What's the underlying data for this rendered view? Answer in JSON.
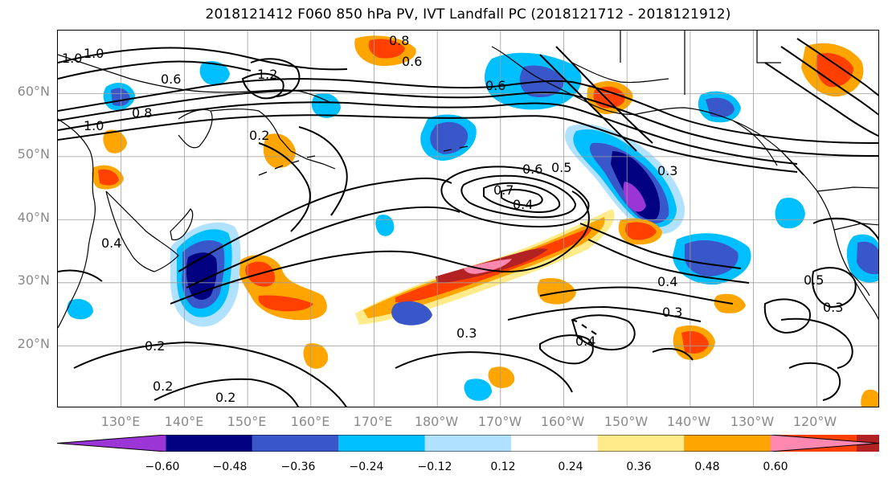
{
  "title": "2018121412 F060 850 hPa PV, IVT Landfall PC (2018121712 - 2018121912)",
  "lat_labels": [
    "60°N",
    "50°N",
    "40°N",
    "30°N",
    "20°N"
  ],
  "lon_labels": [
    "130°E",
    "140°E",
    "150°E",
    "160°E",
    "170°E",
    "180°W",
    "170°W",
    "160°W",
    "150°W",
    "140°W",
    "130°W",
    "120°W"
  ],
  "contour_labels": [
    "1.0",
    "1.0",
    "0.6",
    "0.8",
    "1.0",
    "1.2",
    "0.8",
    "0.6",
    "0.2",
    "0.6",
    "0.5",
    "0.6",
    "0.7",
    "0.4",
    "0.3",
    "0.4",
    "0.3",
    "0.4",
    "0.2",
    "0.2",
    "0.2",
    "0.3",
    "0.4",
    "0.5",
    "0.3"
  ],
  "colorbar": {
    "tick_labels": [
      "−0.60",
      "−0.48",
      "−0.36",
      "−0.24",
      "−0.12",
      "0.12",
      "0.24",
      "0.36",
      "0.48",
      "0.60"
    ],
    "colors": [
      "#9b35d6",
      "#000080",
      "#3a57c9",
      "#00bfff",
      "#b0e2ff",
      "#ffffff",
      "#ffeb8a",
      "#ffa500",
      "#ff4000",
      "#b22222",
      "#ff88b0"
    ]
  },
  "map": {
    "region": "North Pacific",
    "lat_range": [
      10,
      70
    ],
    "lon_range": [
      120,
      250
    ],
    "field_shading": "850 hPa PV",
    "contours": "IVT Landfall PC",
    "colors": {
      "coast": "#000000",
      "grid": "#9e9e9e",
      "contour": "#000000"
    }
  }
}
